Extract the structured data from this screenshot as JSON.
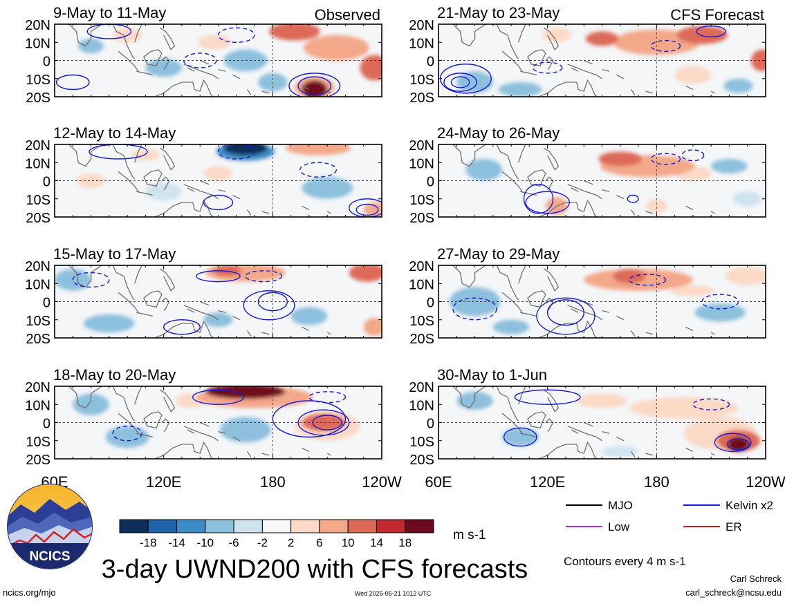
{
  "chart_data": {
    "type": "heatmap",
    "title": "3-day UWND200 with CFS forecasts",
    "source_url": "ncics.org/mjo",
    "timestamp": "Wed 2025-05-21 1012 UTC",
    "author": "Carl Schreck",
    "email": "carl_schreck@ncsu.edu",
    "contour_note": "Contours every 4 m s-1",
    "colorbar": {
      "ticks": [
        "-18",
        "-14",
        "-10",
        "-6",
        "-2",
        "2",
        "6",
        "10",
        "14",
        "18"
      ],
      "unit": "m s-1",
      "colors": [
        "#0b2f5a",
        "#1f63a8",
        "#3d8bc4",
        "#8dc0dd",
        "#cfe3ef",
        "#f7f7f7",
        "#fbd9c6",
        "#f3a889",
        "#dd6a58",
        "#c22a2f",
        "#6e0a1e"
      ]
    },
    "x_ticks": [
      "60E",
      "120E",
      "180",
      "120W"
    ],
    "y_ticks": [
      "20N",
      "10N",
      "0",
      "10S",
      "20S"
    ],
    "legend": {
      "placement": "bottom-right",
      "items": [
        {
          "label": "MJO",
          "color": "#000000"
        },
        {
          "label": "Kelvin x2",
          "color": "#1a1ad6"
        },
        {
          "label": "Low",
          "color": "#9b30d9"
        },
        {
          "label": "ER",
          "color": "#d62020"
        }
      ]
    },
    "logo_text": "NCICS",
    "panels": [
      {
        "period": "9-May to 11-May",
        "tag": "Observed",
        "blobs": [
          {
            "x": 192,
            "y": 16,
            "rx": 14,
            "ry": 5,
            "v": 14
          },
          {
            "x": 215,
            "y": 7,
            "rx": 18,
            "ry": 7,
            "v": 10
          },
          {
            "x": 236,
            "y": -4,
            "rx": 8,
            "ry": 7,
            "v": 14
          },
          {
            "x": 203,
            "y": -16,
            "rx": 7,
            "ry": 5,
            "v": 20
          },
          {
            "x": 203,
            "y": -15,
            "rx": 11,
            "ry": 6,
            "v": 10
          },
          {
            "x": 80,
            "y": 8,
            "rx": 7,
            "ry": 4,
            "v": -6
          },
          {
            "x": 120,
            "y": -4,
            "rx": 10,
            "ry": 5,
            "v": -6
          },
          {
            "x": 165,
            "y": 0,
            "rx": 12,
            "ry": 6,
            "v": -6
          },
          {
            "x": 180,
            "y": -12,
            "rx": 8,
            "ry": 5,
            "v": -6
          },
          {
            "x": 100,
            "y": 14,
            "rx": 8,
            "ry": 4,
            "v": 6
          },
          {
            "x": 148,
            "y": 10,
            "rx": 9,
            "ry": 4,
            "v": 6
          }
        ],
        "contours": [
          {
            "x": 203,
            "y": -14,
            "rx": 9,
            "ry": 5,
            "dashed": false
          },
          {
            "x": 203,
            "y": -14,
            "rx": 14,
            "ry": 7,
            "dashed": false
          },
          {
            "x": 90,
            "y": 16,
            "rx": 12,
            "ry": 4,
            "dashed": false
          },
          {
            "x": 160,
            "y": 14,
            "rx": 10,
            "ry": 4,
            "dashed": true
          },
          {
            "x": 70,
            "y": -12,
            "rx": 9,
            "ry": 4,
            "dashed": false
          },
          {
            "x": 140,
            "y": 0,
            "rx": 9,
            "ry": 4,
            "dashed": true
          }
        ]
      },
      {
        "period": "21-May to 23-May",
        "tag": "CFS Forecast",
        "blobs": [
          {
            "x": 180,
            "y": 10,
            "rx": 24,
            "ry": 7,
            "v": 10
          },
          {
            "x": 150,
            "y": 12,
            "rx": 9,
            "ry": 4,
            "v": 14
          },
          {
            "x": 205,
            "y": 14,
            "rx": 14,
            "ry": 5,
            "v": 14
          },
          {
            "x": 238,
            "y": 0,
            "rx": 6,
            "ry": 6,
            "v": 14
          },
          {
            "x": 200,
            "y": -8,
            "rx": 10,
            "ry": 5,
            "v": 6
          },
          {
            "x": 80,
            "y": -12,
            "rx": 10,
            "ry": 6,
            "v": -6
          },
          {
            "x": 105,
            "y": -16,
            "rx": 12,
            "ry": 4,
            "v": -6
          },
          {
            "x": 225,
            "y": -14,
            "rx": 8,
            "ry": 4,
            "v": -6
          },
          {
            "x": 125,
            "y": 14,
            "rx": 8,
            "ry": 4,
            "v": 6
          }
        ],
        "contours": [
          {
            "x": 72,
            "y": -12,
            "rx": 5,
            "ry": 3,
            "dashed": false
          },
          {
            "x": 72,
            "y": -12,
            "rx": 9,
            "ry": 5,
            "dashed": false
          },
          {
            "x": 75,
            "y": -10,
            "rx": 14,
            "ry": 8,
            "dashed": false
          },
          {
            "x": 210,
            "y": 16,
            "rx": 8,
            "ry": 3,
            "dashed": false
          },
          {
            "x": 185,
            "y": 8,
            "rx": 8,
            "ry": 3,
            "dashed": true
          },
          {
            "x": 120,
            "y": -4,
            "rx": 8,
            "ry": 3,
            "dashed": true
          }
        ]
      },
      {
        "period": "12-May to 14-May",
        "tag": "",
        "blobs": [
          {
            "x": 165,
            "y": 18,
            "rx": 12,
            "ry": 4,
            "v": -20
          },
          {
            "x": 165,
            "y": 16,
            "rx": 16,
            "ry": 5,
            "v": -10
          },
          {
            "x": 205,
            "y": 18,
            "rx": 18,
            "ry": 4,
            "v": 10
          },
          {
            "x": 238,
            "y": -16,
            "rx": 8,
            "ry": 4,
            "v": 10
          },
          {
            "x": 210,
            "y": -4,
            "rx": 14,
            "ry": 6,
            "v": -6
          },
          {
            "x": 150,
            "y": 4,
            "rx": 8,
            "ry": 4,
            "v": 6
          },
          {
            "x": 80,
            "y": 0,
            "rx": 8,
            "ry": 4,
            "v": 6
          },
          {
            "x": 110,
            "y": 14,
            "rx": 8,
            "ry": 3,
            "v": 6
          },
          {
            "x": 120,
            "y": -6,
            "rx": 10,
            "ry": 5,
            "v": -2
          }
        ],
        "contours": [
          {
            "x": 95,
            "y": 16,
            "rx": 16,
            "ry": 4,
            "dashed": false
          },
          {
            "x": 160,
            "y": 16,
            "rx": 10,
            "ry": 4,
            "dashed": true
          },
          {
            "x": 232,
            "y": -16,
            "rx": 6,
            "ry": 3,
            "dashed": false
          },
          {
            "x": 232,
            "y": -15,
            "rx": 10,
            "ry": 5,
            "dashed": false
          },
          {
            "x": 150,
            "y": -12,
            "rx": 8,
            "ry": 4,
            "dashed": false
          },
          {
            "x": 205,
            "y": 6,
            "rx": 10,
            "ry": 4,
            "dashed": true
          }
        ]
      },
      {
        "period": "24-May to 26-May",
        "tag": "",
        "blobs": [
          {
            "x": 160,
            "y": 12,
            "rx": 12,
            "ry": 4,
            "v": 14
          },
          {
            "x": 175,
            "y": 8,
            "rx": 26,
            "ry": 6,
            "v": 10
          },
          {
            "x": 200,
            "y": 4,
            "rx": 10,
            "ry": 4,
            "v": 6
          },
          {
            "x": 180,
            "y": -14,
            "rx": 6,
            "ry": 4,
            "v": 6
          },
          {
            "x": 125,
            "y": -14,
            "rx": 6,
            "ry": 5,
            "v": 10
          },
          {
            "x": 85,
            "y": 6,
            "rx": 10,
            "ry": 6,
            "v": -6
          },
          {
            "x": 220,
            "y": 8,
            "rx": 10,
            "ry": 4,
            "v": -6
          },
          {
            "x": 230,
            "y": -10,
            "rx": 8,
            "ry": 4,
            "v": -2
          }
        ],
        "contours": [
          {
            "x": 115,
            "y": -10,
            "rx": 8,
            "ry": 8,
            "dashed": false
          },
          {
            "x": 120,
            "y": -12,
            "rx": 12,
            "ry": 6,
            "dashed": false
          },
          {
            "x": 185,
            "y": 12,
            "rx": 8,
            "ry": 3,
            "dashed": true
          },
          {
            "x": 200,
            "y": 14,
            "rx": 6,
            "ry": 3,
            "dashed": true
          },
          {
            "x": 167,
            "y": -10,
            "rx": 3,
            "ry": 2,
            "dashed": false
          }
        ]
      },
      {
        "period": "15-May to 17-May",
        "tag": "",
        "blobs": [
          {
            "x": 165,
            "y": 16,
            "rx": 22,
            "ry": 5,
            "v": 10
          },
          {
            "x": 155,
            "y": 17,
            "rx": 8,
            "ry": 3,
            "v": 14
          },
          {
            "x": 232,
            "y": 16,
            "rx": 10,
            "ry": 5,
            "v": 14
          },
          {
            "x": 70,
            "y": 12,
            "rx": 10,
            "ry": 6,
            "v": -6
          },
          {
            "x": 90,
            "y": -12,
            "rx": 14,
            "ry": 5,
            "v": -6
          },
          {
            "x": 150,
            "y": -10,
            "rx": 8,
            "ry": 4,
            "v": -6
          },
          {
            "x": 200,
            "y": -8,
            "rx": 10,
            "ry": 5,
            "v": -6
          },
          {
            "x": 236,
            "y": -14,
            "rx": 6,
            "ry": 5,
            "v": 10
          }
        ],
        "contours": [
          {
            "x": 180,
            "y": 0,
            "rx": 8,
            "ry": 5,
            "dashed": false
          },
          {
            "x": 178,
            "y": -2,
            "rx": 14,
            "ry": 8,
            "dashed": false
          },
          {
            "x": 150,
            "y": 14,
            "rx": 12,
            "ry": 3,
            "dashed": false
          },
          {
            "x": 175,
            "y": 14,
            "rx": 10,
            "ry": 3,
            "dashed": true
          },
          {
            "x": 130,
            "y": -14,
            "rx": 10,
            "ry": 4,
            "dashed": false
          },
          {
            "x": 80,
            "y": 12,
            "rx": 10,
            "ry": 4,
            "dashed": true
          }
        ]
      },
      {
        "period": "27-May to 29-May",
        "tag": "",
        "blobs": [
          {
            "x": 165,
            "y": 14,
            "rx": 9,
            "ry": 4,
            "v": 14
          },
          {
            "x": 170,
            "y": 12,
            "rx": 30,
            "ry": 6,
            "v": 10
          },
          {
            "x": 230,
            "y": 14,
            "rx": 12,
            "ry": 5,
            "v": 6
          },
          {
            "x": 80,
            "y": 0,
            "rx": 14,
            "ry": 8,
            "v": -6
          },
          {
            "x": 215,
            "y": -6,
            "rx": 14,
            "ry": 5,
            "v": -6
          },
          {
            "x": 200,
            "y": 6,
            "rx": 12,
            "ry": 3,
            "v": 6
          },
          {
            "x": 100,
            "y": -14,
            "rx": 10,
            "ry": 4,
            "v": -6
          }
        ],
        "contours": [
          {
            "x": 130,
            "y": -6,
            "rx": 10,
            "ry": 7,
            "dashed": false
          },
          {
            "x": 130,
            "y": -8,
            "rx": 16,
            "ry": 10,
            "dashed": false
          },
          {
            "x": 80,
            "y": -4,
            "rx": 12,
            "ry": 6,
            "dashed": true
          },
          {
            "x": 215,
            "y": 0,
            "rx": 10,
            "ry": 4,
            "dashed": true
          },
          {
            "x": 175,
            "y": 12,
            "rx": 10,
            "ry": 3,
            "dashed": true
          }
        ]
      },
      {
        "period": "18-May to 20-May",
        "tag": "",
        "blobs": [
          {
            "x": 165,
            "y": 17,
            "rx": 22,
            "ry": 4,
            "v": 20
          },
          {
            "x": 170,
            "y": 14,
            "rx": 32,
            "ry": 6,
            "v": 10
          },
          {
            "x": 208,
            "y": 0,
            "rx": 12,
            "ry": 5,
            "v": 14
          },
          {
            "x": 210,
            "y": -2,
            "rx": 18,
            "ry": 8,
            "v": 6
          },
          {
            "x": 80,
            "y": 10,
            "rx": 10,
            "ry": 6,
            "v": -6
          },
          {
            "x": 100,
            "y": -8,
            "rx": 12,
            "ry": 6,
            "v": -6
          },
          {
            "x": 165,
            "y": -4,
            "rx": 14,
            "ry": 7,
            "v": -6
          },
          {
            "x": 135,
            "y": 12,
            "rx": 8,
            "ry": 4,
            "v": 6
          }
        ],
        "contours": [
          {
            "x": 210,
            "y": 0,
            "rx": 8,
            "ry": 4,
            "dashed": false
          },
          {
            "x": 208,
            "y": 0,
            "rx": 14,
            "ry": 7,
            "dashed": false
          },
          {
            "x": 200,
            "y": 2,
            "rx": 20,
            "ry": 10,
            "dashed": false
          },
          {
            "x": 150,
            "y": 14,
            "rx": 14,
            "ry": 4,
            "dashed": false
          },
          {
            "x": 210,
            "y": 14,
            "rx": 10,
            "ry": 3,
            "dashed": true
          },
          {
            "x": 100,
            "y": -6,
            "rx": 8,
            "ry": 4,
            "dashed": true
          }
        ]
      },
      {
        "period": "30-May to 1-Jun",
        "tag": "",
        "blobs": [
          {
            "x": 225,
            "y": -12,
            "rx": 6,
            "ry": 4,
            "v": 20
          },
          {
            "x": 225,
            "y": -10,
            "rx": 12,
            "ry": 6,
            "v": 14
          },
          {
            "x": 215,
            "y": -6,
            "rx": 20,
            "ry": 9,
            "v": 6
          },
          {
            "x": 195,
            "y": 8,
            "rx": 30,
            "ry": 6,
            "v": 6
          },
          {
            "x": 105,
            "y": -8,
            "rx": 10,
            "ry": 5,
            "v": -6
          },
          {
            "x": 80,
            "y": 12,
            "rx": 10,
            "ry": 5,
            "v": -6
          },
          {
            "x": 150,
            "y": 12,
            "rx": 14,
            "ry": 4,
            "v": 6
          },
          {
            "x": 160,
            "y": -16,
            "rx": 10,
            "ry": 3,
            "v": -2
          }
        ],
        "contours": [
          {
            "x": 225,
            "y": -12,
            "rx": 6,
            "ry": 3,
            "dashed": false
          },
          {
            "x": 222,
            "y": -11,
            "rx": 10,
            "ry": 5,
            "dashed": false
          },
          {
            "x": 105,
            "y": -8,
            "rx": 9,
            "ry": 5,
            "dashed": false
          },
          {
            "x": 120,
            "y": 14,
            "rx": 18,
            "ry": 4,
            "dashed": false
          },
          {
            "x": 210,
            "y": 10,
            "rx": 10,
            "ry": 3,
            "dashed": true
          }
        ]
      }
    ]
  }
}
